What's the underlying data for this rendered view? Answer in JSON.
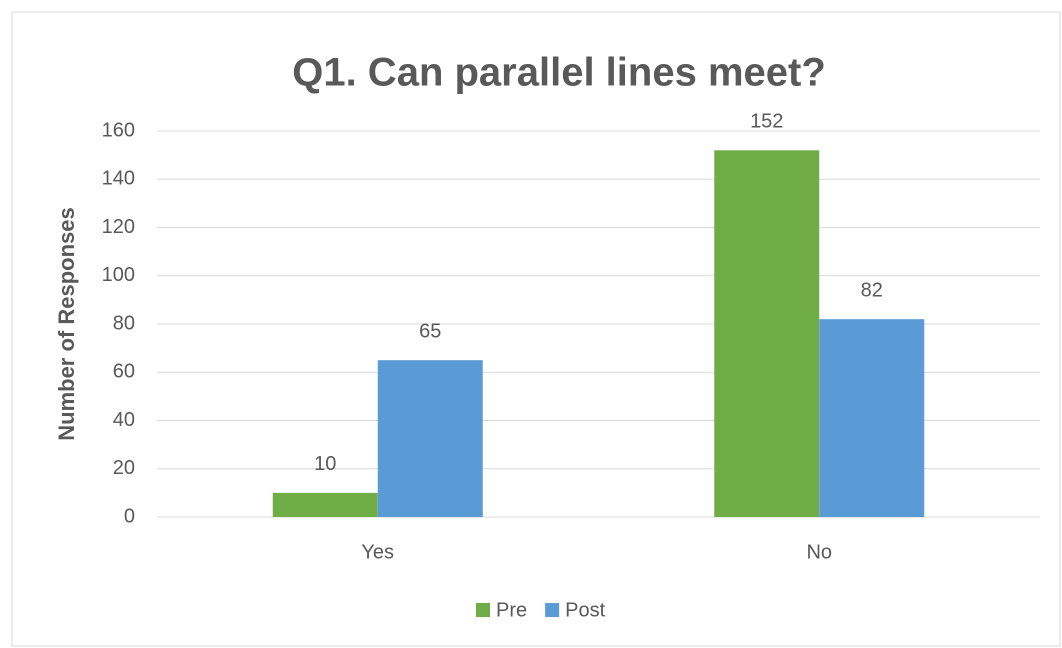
{
  "chart_data": {
    "type": "bar",
    "title": "Q1. Can parallel lines meet?",
    "y_label": "Number of Responses",
    "categories": [
      "Yes",
      "No"
    ],
    "series": [
      {
        "name": "Pre",
        "color": "#70ad47",
        "values": [
          10,
          152
        ]
      },
      {
        "name": "Post",
        "color": "#5b9bd5",
        "values": [
          65,
          82
        ]
      }
    ],
    "ylim": [
      0,
      160
    ],
    "yticks": [
      0,
      20,
      40,
      60,
      80,
      100,
      120,
      140,
      160
    ],
    "grid": true,
    "legend": "bottom"
  }
}
